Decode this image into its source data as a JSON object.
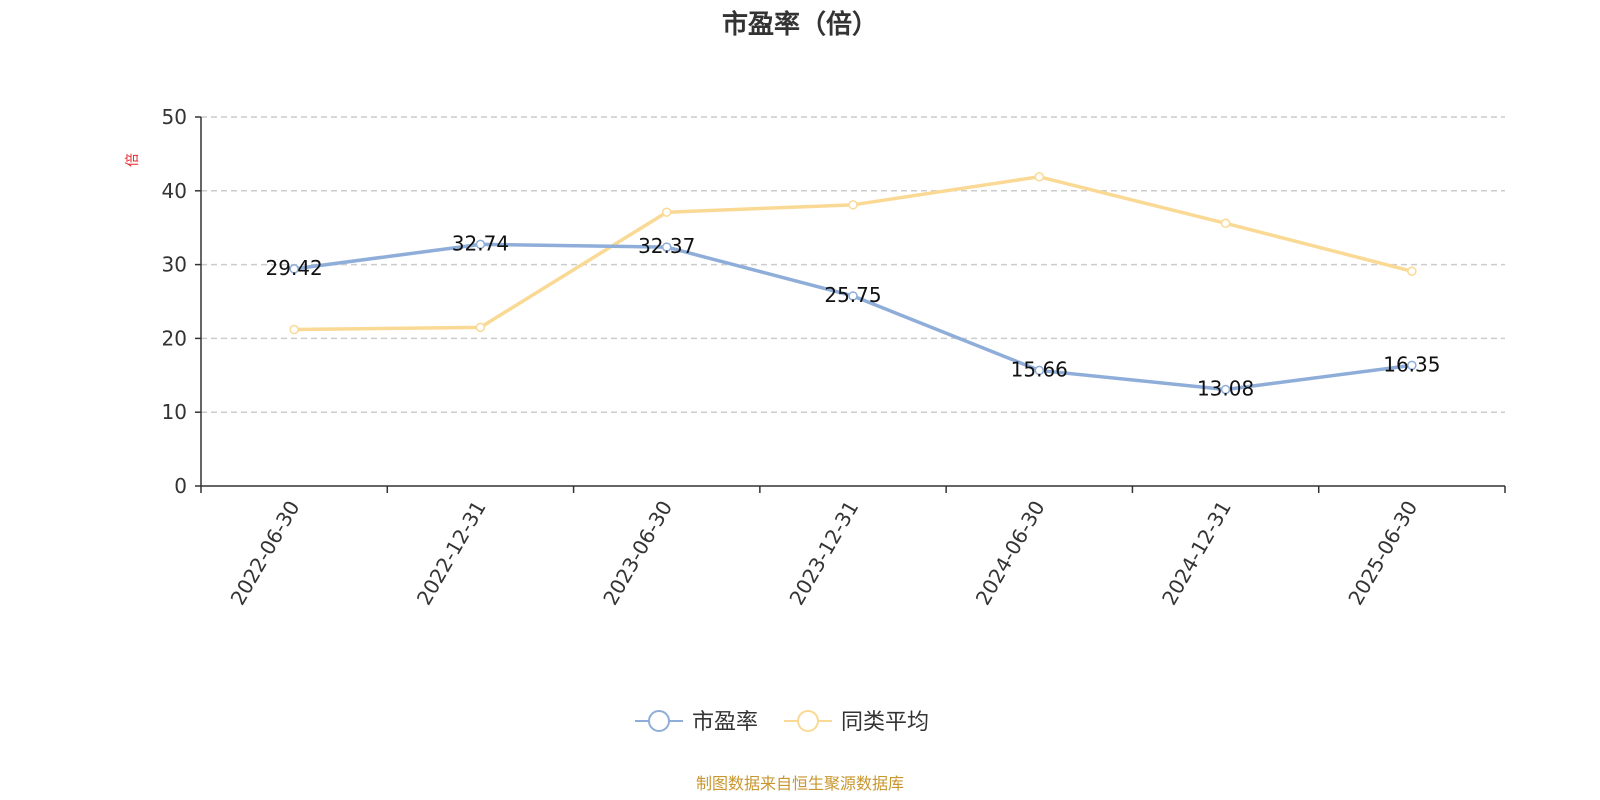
{
  "chart_data": {
    "type": "line",
    "title": "市盈率（倍）",
    "unit_label": "倍",
    "x": [
      "2022-06-30",
      "2022-12-31",
      "2023-06-30",
      "2023-12-31",
      "2024-06-30",
      "2024-12-31",
      "2025-06-30"
    ],
    "ylim": [
      0,
      50
    ],
    "yticks": [
      0,
      10,
      20,
      30,
      40,
      50
    ],
    "grid": true,
    "legend_position": "bottom-center",
    "series": [
      {
        "name": "市盈率",
        "color": "#8eaed9",
        "values": [
          29.42,
          32.74,
          32.37,
          25.75,
          15.66,
          13.08,
          16.35
        ],
        "labels": [
          "29.42",
          "32.74",
          "32.37",
          "25.75",
          "15.66",
          "13.08",
          "16.35"
        ]
      },
      {
        "name": "同类平均",
        "color": "#fad994",
        "values": [
          21.2,
          21.5,
          37.1,
          38.1,
          41.9,
          35.6,
          29.1
        ]
      }
    ]
  },
  "source_note": "制图数据来自恒生聚源数据库"
}
